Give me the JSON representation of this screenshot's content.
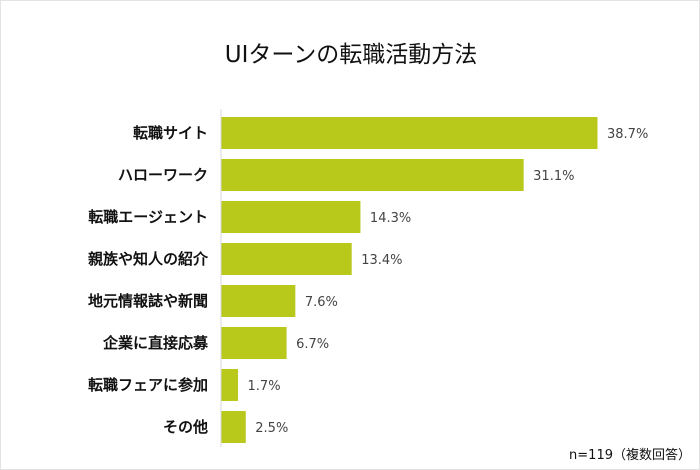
{
  "chart_data": {
    "type": "bar",
    "orientation": "horizontal",
    "title": "UIターンの転職活動方法",
    "categories": [
      "転職サイト",
      "ハローワーク",
      "転職エージェント",
      "親族や知人の紹介",
      "地元情報誌や新聞",
      "企業に直接応募",
      "転職フェアに参加",
      "その他"
    ],
    "values": [
      38.7,
      31.1,
      14.3,
      13.4,
      7.6,
      6.7,
      1.7,
      2.5
    ],
    "value_labels": [
      "38.7%",
      "31.1%",
      "14.3%",
      "13.4%",
      "7.6%",
      "6.7%",
      "1.7%",
      "2.5%"
    ],
    "unit": "%",
    "grid": false,
    "bar_color": "#b8c91c",
    "note": "n=119（複数回答）"
  }
}
